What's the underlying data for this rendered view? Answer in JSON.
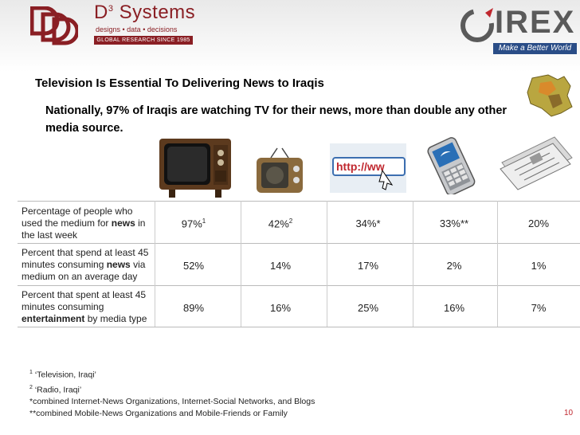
{
  "header": {
    "left_logo": {
      "brand_name": "D",
      "brand_sup": "3",
      "brand_rest": " Systems",
      "tagline": "designs • data • decisions",
      "since": "GLOBAL RESEARCH SINCE 1985",
      "color": "#8a1f24"
    },
    "right_logo": {
      "word": "IREX",
      "motto": "Make a Better World",
      "ring_color": "#5a5a5a",
      "motto_bg": "#2a4d87"
    }
  },
  "title": "Television Is Essential To Delivering News to Iraqis",
  "subtitle": "Nationally, 97% of Iraqis are watching TV for their news, more than double any other media source.",
  "media_icons": [
    "television-image",
    "radio-image",
    "internet-image",
    "mobile-phone-image",
    "newspaper-image"
  ],
  "table": {
    "rows": [
      {
        "label_parts": [
          "Percentage of people who used the medium for ",
          "news",
          " in the last week"
        ],
        "cells": [
          {
            "value": "97%",
            "sup": "1"
          },
          {
            "value": "42%",
            "sup": "2"
          },
          {
            "value": "34%*",
            "sup": ""
          },
          {
            "value": "33%**",
            "sup": ""
          },
          {
            "value": "20%",
            "sup": ""
          }
        ]
      },
      {
        "label_parts": [
          "Percent that spend at least 45 minutes consuming ",
          "news",
          " via medium on an average day"
        ],
        "cells": [
          {
            "value": "52%",
            "sup": ""
          },
          {
            "value": "14%",
            "sup": ""
          },
          {
            "value": "17%",
            "sup": ""
          },
          {
            "value": "2%",
            "sup": ""
          },
          {
            "value": "1%",
            "sup": ""
          }
        ]
      },
      {
        "label_parts": [
          "Percent that spent at least 45 minutes consuming ",
          "entertainment",
          " by media type"
        ],
        "cells": [
          {
            "value": "89%",
            "sup": ""
          },
          {
            "value": "16%",
            "sup": ""
          },
          {
            "value": "25%",
            "sup": ""
          },
          {
            "value": "16%",
            "sup": ""
          },
          {
            "value": "7%",
            "sup": ""
          }
        ]
      }
    ]
  },
  "footnotes": [
    {
      "sup": "1",
      "text": " ‘Television, Iraqi’"
    },
    {
      "sup": "2",
      "text": " ‘Radio, Iraqi’"
    },
    {
      "sup": "",
      "text": "*combined Internet-News Organizations, Internet-Social Networks, and Blogs"
    },
    {
      "sup": "",
      "text": "**combined Mobile-News Organizations and Mobile-Friends or Family"
    }
  ],
  "page_number": "10"
}
